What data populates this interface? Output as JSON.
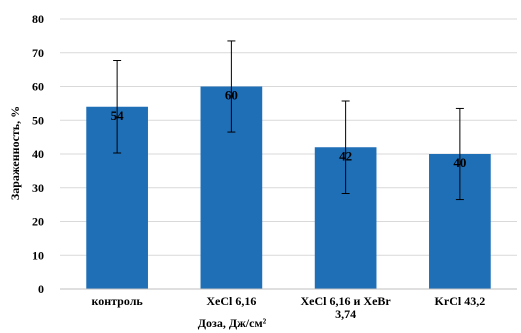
{
  "chart_data": {
    "type": "bar",
    "categories": [
      "контроль",
      "XeCl 6,16",
      "XeCl 6,16 и XeBr 3,74",
      "KrCl 43,2"
    ],
    "category_lines": [
      [
        "контроль"
      ],
      [
        "XeCl 6,16"
      ],
      [
        "XeCl 6,16 и XeBr",
        "3,74"
      ],
      [
        "KrCl 43,2"
      ]
    ],
    "values": [
      54,
      60,
      42,
      40
    ],
    "data_labels": [
      "54",
      "60",
      "42",
      "40"
    ],
    "errors": [
      13.7,
      13.5,
      13.7,
      13.5
    ],
    "title": "",
    "xlabel": "Доза, Дж/см²",
    "ylabel": "Зараженность, %",
    "ylim": [
      0,
      80
    ],
    "yticks": [
      0,
      10,
      20,
      30,
      40,
      50,
      60,
      70,
      80
    ],
    "ytick_labels": [
      "0",
      "10",
      "20",
      "30",
      "40",
      "50",
      "60",
      "70",
      "80"
    ],
    "grid": true,
    "legend": "none",
    "bar_color": "#1f6fb7",
    "grid_color": "#d9d9d9",
    "axis_color": "#bfbfbf"
  }
}
